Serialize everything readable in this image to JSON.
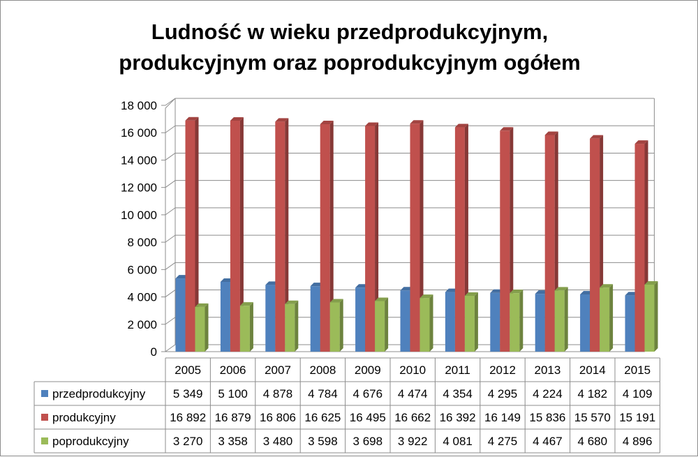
{
  "chart_data": {
    "type": "bar",
    "title": "Ludność w wieku przedprodukcyjnym, produkcyjnym oraz poprodukcyjnym ogółem",
    "title_lines": [
      "Ludność w wieku przedprodukcyjnym,",
      "produkcyjnym oraz poprodukcyjnym ogółem"
    ],
    "categories": [
      "2005",
      "2006",
      "2007",
      "2008",
      "2009",
      "2010",
      "2011",
      "2012",
      "2013",
      "2014",
      "2015"
    ],
    "ylim": [
      0,
      18000
    ],
    "y_ticks": [
      0,
      2000,
      4000,
      6000,
      8000,
      10000,
      12000,
      14000,
      16000,
      18000
    ],
    "y_tick_labels": [
      "0",
      "2 000",
      "4 000",
      "6 000",
      "8 000",
      "10 000",
      "12 000",
      "14 000",
      "16 000",
      "18 000"
    ],
    "grid": true,
    "three_d": true,
    "legend": "data-table",
    "series": [
      {
        "name": "przedprodukcyjny",
        "color": "#4f81bd",
        "values": [
          5349,
          5100,
          4878,
          4784,
          4676,
          4474,
          4354,
          4295,
          4224,
          4182,
          4109
        ],
        "labels": [
          "5 349",
          "5 100",
          "4 878",
          "4 784",
          "4 676",
          "4 474",
          "4 354",
          "4 295",
          "4 224",
          "4 182",
          "4 109"
        ]
      },
      {
        "name": "produkcyjny",
        "color": "#c0504d",
        "values": [
          16892,
          16879,
          16806,
          16625,
          16495,
          16662,
          16392,
          16149,
          15836,
          15570,
          15191
        ],
        "labels": [
          "16 892",
          "16 879",
          "16 806",
          "16 625",
          "16 495",
          "16 662",
          "16 392",
          "16 149",
          "15 836",
          "15 570",
          "15 191"
        ]
      },
      {
        "name": "poprodukcyjny",
        "color": "#9bbb59",
        "values": [
          3270,
          3358,
          3480,
          3598,
          3698,
          3922,
          4081,
          4275,
          4467,
          4680,
          4896
        ],
        "labels": [
          "3 270",
          "3 358",
          "3 480",
          "3 598",
          "3 698",
          "3 922",
          "4 081",
          "4 275",
          "4 467",
          "4 680",
          "4 896"
        ]
      }
    ]
  }
}
